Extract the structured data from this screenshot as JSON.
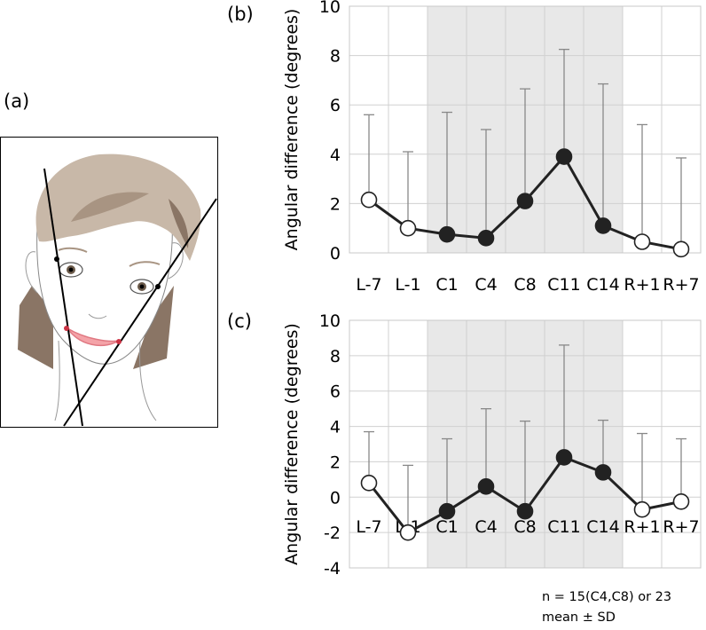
{
  "labels": {
    "a": "(a)",
    "b": "(b)",
    "c": "(c)"
  },
  "footnote": {
    "n": "n = 15(C4,C8) or 23",
    "mean": "mean ± SD"
  },
  "chart_data": [
    {
      "id": "b",
      "type": "line",
      "title": "",
      "xlabel": "",
      "ylabel": "Angular difference (degrees)",
      "categories": [
        "L-7",
        "L-1",
        "C1",
        "C4",
        "C8",
        "C11",
        "C14",
        "R+1",
        "R+7"
      ],
      "values": [
        2.15,
        1.0,
        0.75,
        0.6,
        2.1,
        3.9,
        1.1,
        0.45,
        0.15
      ],
      "sd_upper": [
        5.6,
        4.1,
        5.7,
        5.0,
        6.65,
        8.25,
        6.85,
        5.2,
        3.85
      ],
      "marker_fill": [
        "open",
        "open",
        "filled",
        "filled",
        "filled",
        "filled",
        "filled",
        "open",
        "open"
      ],
      "ylim": [
        0,
        10
      ],
      "yticks": [
        0,
        2,
        4,
        6,
        8,
        10
      ],
      "grid": true,
      "shaded_categories": [
        "C1",
        "C4",
        "C8",
        "C11",
        "C14"
      ]
    },
    {
      "id": "c",
      "type": "line",
      "title": "",
      "xlabel": "",
      "ylabel": "Angular difference (degrees)",
      "categories": [
        "L-7",
        "L-1",
        "C1",
        "C4",
        "C8",
        "C11",
        "C14",
        "R+1",
        "R+7"
      ],
      "values": [
        0.8,
        -2.0,
        -0.8,
        0.6,
        -0.8,
        2.25,
        1.4,
        -0.7,
        -0.25
      ],
      "sd_upper": [
        3.7,
        1.8,
        3.3,
        5.0,
        4.3,
        8.6,
        4.35,
        3.6,
        3.3
      ],
      "marker_fill": [
        "open",
        "open",
        "filled",
        "filled",
        "filled",
        "filled",
        "filled",
        "open",
        "open"
      ],
      "ylim": [
        -4,
        10
      ],
      "yticks": [
        -4,
        -2,
        0,
        2,
        4,
        6,
        8,
        10
      ],
      "grid": true,
      "shaded_categories": [
        "C1",
        "C4",
        "C8",
        "C11",
        "C14"
      ]
    }
  ]
}
